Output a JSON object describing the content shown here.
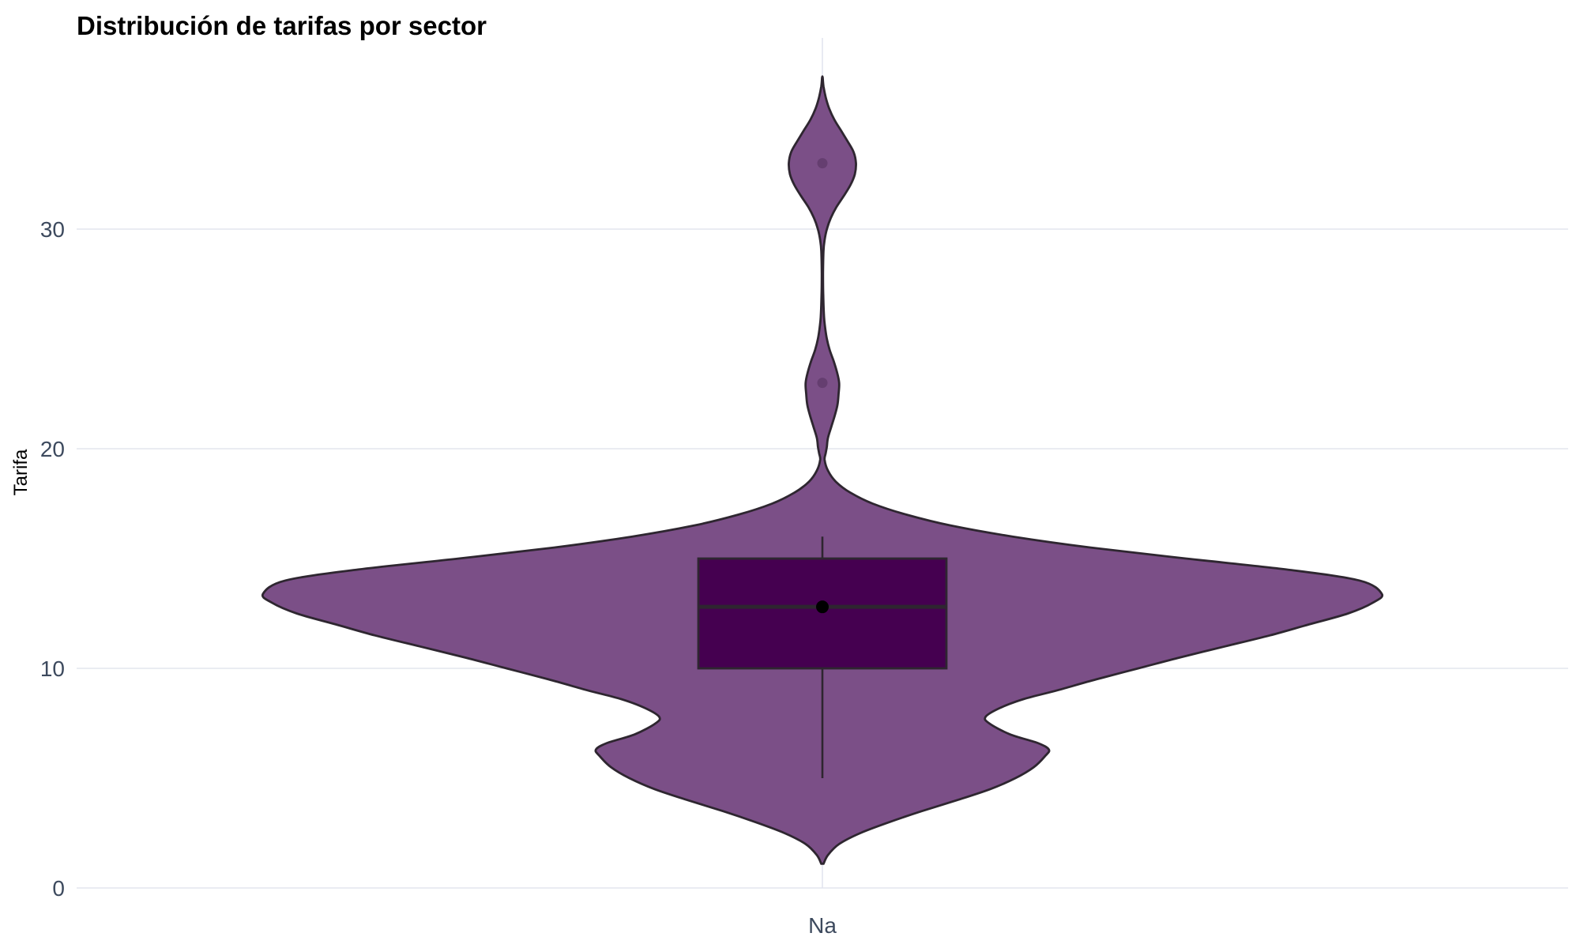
{
  "chart_data": {
    "type": "violin",
    "title": "Distribución de tarifas por sector",
    "xlabel": "",
    "ylabel": "Tarifa",
    "categories": [
      "Na"
    ],
    "ylim": [
      0,
      38
    ],
    "yticks": [
      0,
      10,
      20,
      30
    ],
    "grid": true,
    "legend": "none",
    "colors": {
      "violin_fill": "#7b4f87",
      "box_fill": "#450050",
      "outline": "#2e2630",
      "grid": "#e3e5ee",
      "tick_text": "#3d4a5e"
    },
    "series": [
      {
        "category": "Na",
        "box": {
          "whisker_low": 5,
          "q1": 10,
          "median": 12.8,
          "q3": 15,
          "whisker_high": 16,
          "mean": 12.8
        },
        "outliers": [
          23,
          33
        ],
        "density": {
          "y": [
            1.1,
            1.5,
            2.0,
            2.5,
            3.0,
            3.5,
            4.0,
            4.5,
            5.0,
            5.5,
            6.0,
            6.3,
            6.6,
            7.0,
            7.5,
            7.8,
            8.2,
            8.6,
            9.0,
            9.5,
            10.0,
            10.5,
            11.0,
            11.5,
            12.0,
            12.5,
            13.0,
            13.4,
            14.0,
            14.5,
            15.0,
            15.5,
            16.0,
            16.5,
            17.0,
            17.5,
            18.0,
            18.5,
            19.0,
            19.5,
            19.8,
            20.1,
            20.5,
            21.0,
            21.5,
            22.0,
            22.5,
            23.0,
            23.5,
            24.0,
            24.5,
            25.0,
            25.5,
            26.0,
            27.0,
            28.0,
            29.0,
            29.5,
            30.0,
            30.5,
            31.0,
            31.5,
            32.0,
            32.5,
            33.0,
            33.5,
            34.0,
            34.5,
            35.0,
            35.5,
            36.0,
            36.5,
            36.9
          ],
          "width": [
            0.002,
            0.01,
            0.03,
            0.068,
            0.12,
            0.178,
            0.241,
            0.3,
            0.345,
            0.378,
            0.398,
            0.405,
            0.385,
            0.335,
            0.298,
            0.292,
            0.318,
            0.36,
            0.42,
            0.49,
            0.565,
            0.64,
            0.72,
            0.8,
            0.87,
            0.94,
            0.985,
            1.0,
            0.96,
            0.83,
            0.65,
            0.48,
            0.34,
            0.23,
            0.15,
            0.09,
            0.05,
            0.024,
            0.01,
            0.004,
            0.006,
            0.008,
            0.01,
            0.016,
            0.022,
            0.027,
            0.029,
            0.03,
            0.026,
            0.02,
            0.013,
            0.008,
            0.005,
            0.003,
            0.0015,
            0.0012,
            0.002,
            0.004,
            0.008,
            0.015,
            0.025,
            0.038,
            0.05,
            0.058,
            0.06,
            0.056,
            0.045,
            0.033,
            0.021,
            0.012,
            0.006,
            0.002,
            0.0005
          ]
        }
      }
    ]
  }
}
